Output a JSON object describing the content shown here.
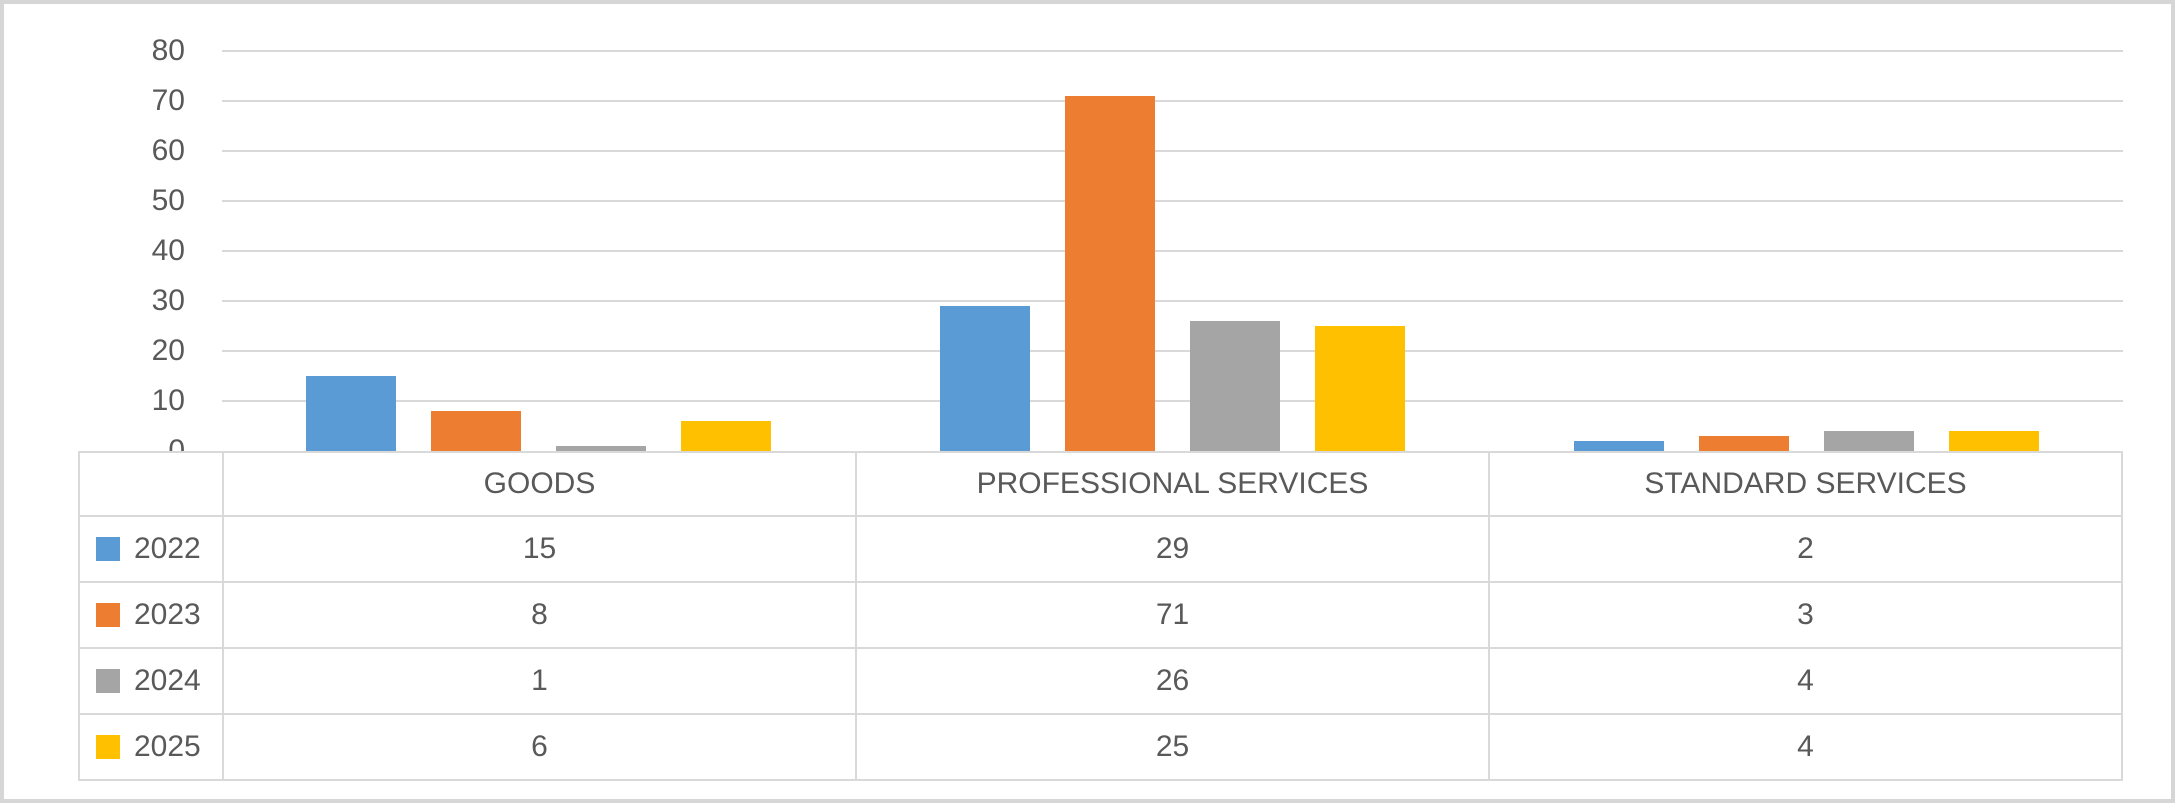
{
  "chart_data": {
    "type": "bar",
    "title": "",
    "xlabel": "",
    "ylabel": "",
    "categories": [
      "GOODS",
      "PROFESSIONAL SERVICES",
      "STANDARD SERVICES"
    ],
    "series": [
      {
        "name": "2022",
        "color": "#5B9BD5",
        "values": [
          15,
          29,
          2
        ]
      },
      {
        "name": "2023",
        "color": "#ED7D31",
        "values": [
          8,
          71,
          3
        ]
      },
      {
        "name": "2024",
        "color": "#A5A5A5",
        "values": [
          1,
          26,
          4
        ]
      },
      {
        "name": "2025",
        "color": "#FFC000",
        "values": [
          6,
          25,
          4
        ]
      }
    ],
    "ylim": [
      0,
      80
    ],
    "yticks": [
      0,
      10,
      20,
      30,
      40,
      50,
      60,
      70,
      80
    ],
    "grid": true,
    "legend_position": "data-table-left-column",
    "data_table_shown": true
  },
  "style": {
    "text_color": "#595959",
    "gridline_color": "#D9D9D9",
    "table_border_color": "#D9D9D9",
    "frame_border_color": "#D6D6D6",
    "background": "#FFFFFF"
  }
}
